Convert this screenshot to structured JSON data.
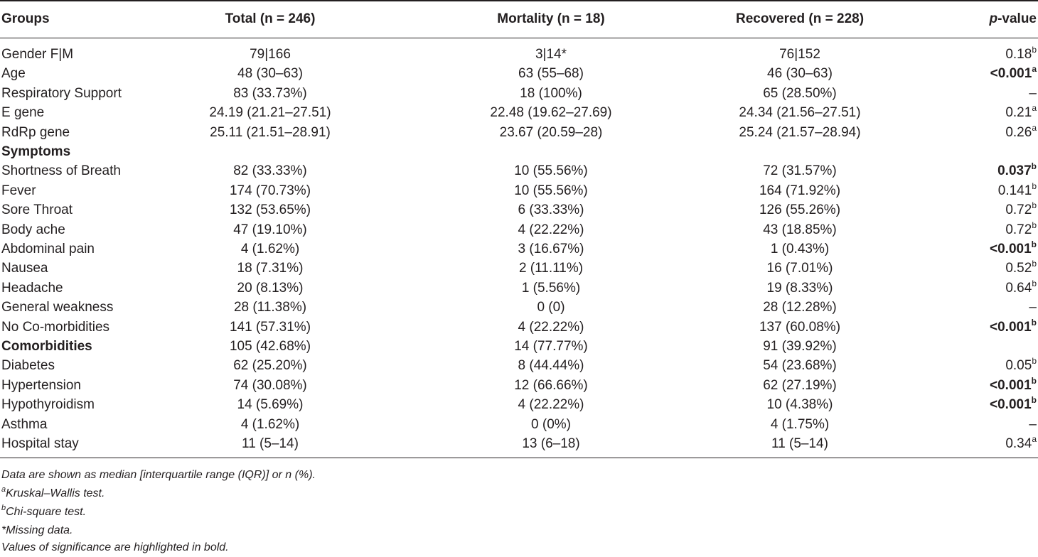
{
  "headers": {
    "groups": "Groups",
    "total": "Total (n = 246)",
    "mortality": "Mortality (n = 18)",
    "recovered": "Recovered (n = 228)",
    "pvalue_italic": "p",
    "pvalue_rest": "-value"
  },
  "rows": [
    {
      "label": "Gender F|M",
      "total": "79|166",
      "mortality": "3|14*",
      "recovered": "76|152",
      "p": "0.18",
      "sup": "b",
      "bold_p": false,
      "bold_label": false
    },
    {
      "label": "Age",
      "total": "48 (30–63)",
      "mortality": "63 (55–68)",
      "recovered": "46 (30–63)",
      "p": "<0.001",
      "sup": "a",
      "bold_p": true,
      "bold_label": false
    },
    {
      "label": "Respiratory Support",
      "total": "83 (33.73%)",
      "mortality": "18 (100%)",
      "recovered": "65 (28.50%)",
      "p": "–",
      "sup": "",
      "bold_p": false,
      "bold_label": false
    },
    {
      "label": "E gene",
      "total": "24.19 (21.21–27.51)",
      "mortality": "22.48 (19.62–27.69)",
      "recovered": "24.34 (21.56–27.51)",
      "p": "0.21",
      "sup": "a",
      "bold_p": false,
      "bold_label": false
    },
    {
      "label": "RdRp gene",
      "total": "25.11 (21.51–28.91)",
      "mortality": "23.67 (20.59–28)",
      "recovered": "25.24 (21.57–28.94)",
      "p": "0.26",
      "sup": "a",
      "bold_p": false,
      "bold_label": false
    },
    {
      "label": "Symptoms",
      "total": "",
      "mortality": "",
      "recovered": "",
      "p": "",
      "sup": "",
      "bold_p": false,
      "bold_label": true
    },
    {
      "label": "Shortness of Breath",
      "total": "82 (33.33%)",
      "mortality": "10 (55.56%)",
      "recovered": "72 (31.57%)",
      "p": "0.037",
      "sup": "b",
      "bold_p": true,
      "bold_label": false
    },
    {
      "label": "Fever",
      "total": "174 (70.73%)",
      "mortality": "10 (55.56%)",
      "recovered": "164 (71.92%)",
      "p": "0.141",
      "sup": "b",
      "bold_p": false,
      "bold_label": false
    },
    {
      "label": "Sore Throat",
      "total": "132 (53.65%)",
      "mortality": "6 (33.33%)",
      "recovered": "126 (55.26%)",
      "p": "0.72",
      "sup": "b",
      "bold_p": false,
      "bold_label": false
    },
    {
      "label": "Body ache",
      "total": "47 (19.10%)",
      "mortality": "4 (22.22%)",
      "recovered": "43 (18.85%)",
      "p": "0.72",
      "sup": "b",
      "bold_p": false,
      "bold_label": false
    },
    {
      "label": "Abdominal pain",
      "total": "4 (1.62%)",
      "mortality": "3 (16.67%)",
      "recovered": "1 (0.43%)",
      "p": "<0.001",
      "sup": "b",
      "bold_p": true,
      "bold_label": false
    },
    {
      "label": "Nausea",
      "total": "18 (7.31%)",
      "mortality": "2 (11.11%)",
      "recovered": "16 (7.01%)",
      "p": "0.52",
      "sup": "b",
      "bold_p": false,
      "bold_label": false
    },
    {
      "label": "Headache",
      "total": "20 (8.13%)",
      "mortality": "1 (5.56%)",
      "recovered": "19 (8.33%)",
      "p": "0.64",
      "sup": "b",
      "bold_p": false,
      "bold_label": false
    },
    {
      "label": "General weakness",
      "total": "28 (11.38%)",
      "mortality": "0 (0)",
      "recovered": "28 (12.28%)",
      "p": "–",
      "sup": "",
      "bold_p": false,
      "bold_label": false
    },
    {
      "label": "No Co-morbidities",
      "total": "141 (57.31%)",
      "mortality": "4 (22.22%)",
      "recovered": "137 (60.08%)",
      "p": "<0.001",
      "sup": "b",
      "bold_p": true,
      "bold_label": false
    },
    {
      "label": "Comorbidities",
      "total": "105 (42.68%)",
      "mortality": "14 (77.77%)",
      "recovered": "91 (39.92%)",
      "p": "",
      "sup": "",
      "bold_p": false,
      "bold_label": true
    },
    {
      "label": "Diabetes",
      "total": "62 (25.20%)",
      "mortality": "8 (44.44%)",
      "recovered": "54 (23.68%)",
      "p": "0.05",
      "sup": "b",
      "bold_p": false,
      "bold_label": false
    },
    {
      "label": "Hypertension",
      "total": "74 (30.08%)",
      "mortality": "12 (66.66%)",
      "recovered": "62 (27.19%)",
      "p": "<0.001",
      "sup": "b",
      "bold_p": true,
      "bold_label": false
    },
    {
      "label": "Hypothyroidism",
      "total": "14 (5.69%)",
      "mortality": "4 (22.22%)",
      "recovered": "10 (4.38%)",
      "p": "<0.001",
      "sup": "b",
      "bold_p": true,
      "bold_label": false
    },
    {
      "label": "Asthma",
      "total": "4 (1.62%)",
      "mortality": "0 (0%)",
      "recovered": "4 (1.75%)",
      "p": "–",
      "sup": "",
      "bold_p": false,
      "bold_label": false
    },
    {
      "label": "Hospital stay",
      "total": "11 (5–14)",
      "mortality": "13 (6–18)",
      "recovered": "11 (5–14)",
      "p": "0.34",
      "sup": "a",
      "bold_p": false,
      "bold_label": false
    }
  ],
  "footnotes": {
    "note1": "Data are shown as median [interquartile range (IQR)] or n (%).",
    "note2_sup": "a",
    "note2": "Kruskal–Wallis test.",
    "note3_sup": "b",
    "note3": "Chi-square test.",
    "note4": "*Missing data.",
    "note5": "Values of significance are highlighted in bold."
  }
}
